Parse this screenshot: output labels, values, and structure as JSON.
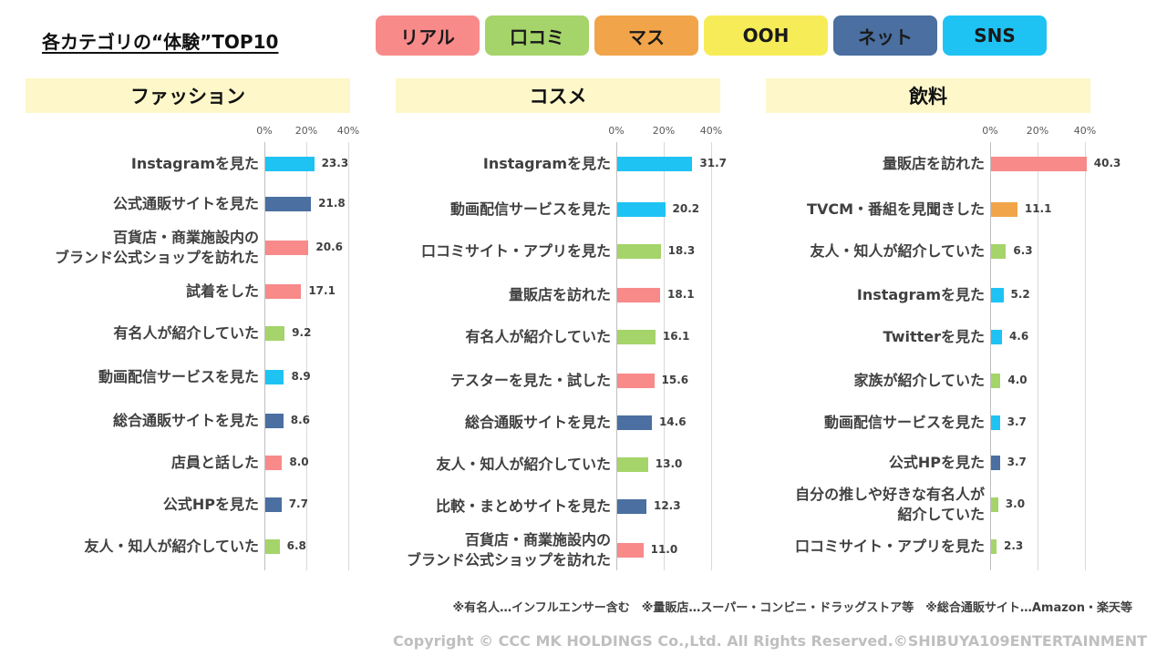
{
  "title": "各カテゴリの“体験”TOP10",
  "legend": [
    {
      "label": "リアル",
      "color": "#f88a8a"
    },
    {
      "label": "口コミ",
      "color": "#a5d46a"
    },
    {
      "label": "マス",
      "color": "#f2a44a"
    },
    {
      "label": "OOH",
      "color": "#f6ec58"
    },
    {
      "label": "ネット",
      "color": "#4a6fa0"
    },
    {
      "label": "SNS",
      "color": "#1ec3f4"
    }
  ],
  "chart_data": [
    {
      "type": "bar",
      "title": "ファッション",
      "xlim": [
        0,
        40
      ],
      "ticks": [
        "0%",
        "20%",
        "40%"
      ],
      "categories": [
        "Instagramを見た",
        "公式通販サイトを見た",
        "百貨店・商業施設内の\nブランド公式ショップを訪れた",
        "試着をした",
        "有名人が紹介していた",
        "動画配信サービスを見た",
        "総合通販サイトを見た",
        "店員と話した",
        "公式HPを見た",
        "友人・知人が紹介していた"
      ],
      "values": [
        23.3,
        21.8,
        20.6,
        17.1,
        9.2,
        8.9,
        8.6,
        8.0,
        7.7,
        6.8
      ],
      "value_labels": [
        "23.3",
        "21.8",
        "20.6",
        "17.1",
        "9.2",
        "8.9",
        "8.6",
        "8.0",
        "7.7",
        "6.8"
      ],
      "channel": [
        "SNS",
        "ネット",
        "リアル",
        "リアル",
        "口コミ",
        "SNS",
        "ネット",
        "リアル",
        "ネット",
        "口コミ"
      ]
    },
    {
      "type": "bar",
      "title": "コスメ",
      "xlim": [
        0,
        40
      ],
      "ticks": [
        "0%",
        "20%",
        "40%"
      ],
      "categories": [
        "Instagramを見た",
        "動画配信サービスを見た",
        "口コミサイト・アプリを見た",
        "量販店を訪れた",
        "有名人が紹介していた",
        "テスターを見た・試した",
        "総合通販サイトを見た",
        "友人・知人が紹介していた",
        "比較・まとめサイトを見た",
        "百貨店・商業施設内の\nブランド公式ショップを訪れた"
      ],
      "values": [
        31.7,
        20.2,
        18.3,
        18.1,
        16.1,
        15.6,
        14.6,
        13.0,
        12.3,
        11.0
      ],
      "value_labels": [
        "31.7",
        "20.2",
        "18.3",
        "18.1",
        "16.1",
        "15.6",
        "14.6",
        "13.0",
        "12.3",
        "11.0"
      ],
      "channel": [
        "SNS",
        "SNS",
        "口コミ",
        "リアル",
        "口コミ",
        "リアル",
        "ネット",
        "口コミ",
        "ネット",
        "リアル"
      ]
    },
    {
      "type": "bar",
      "title": "飲料",
      "xlim": [
        0,
        40
      ],
      "ticks": [
        "0%",
        "20%",
        "40%"
      ],
      "categories": [
        "量販店を訪れた",
        "TVCM・番組を見聞きした",
        "友人・知人が紹介していた",
        "Instagramを見た",
        "Twitterを見た",
        "家族が紹介していた",
        "動画配信サービスを見た",
        "公式HPを見た",
        "自分の推しや好きな有名人が\n紹介していた",
        "口コミサイト・アプリを見た"
      ],
      "values": [
        40.3,
        11.1,
        6.3,
        5.2,
        4.6,
        4.0,
        3.7,
        3.7,
        3.0,
        2.3
      ],
      "value_labels": [
        "40.3",
        "11.1",
        "6.3",
        "5.2",
        "4.6",
        "4.0",
        "3.7",
        "3.7",
        "3.0",
        "2.3"
      ],
      "channel": [
        "リアル",
        "マス",
        "口コミ",
        "SNS",
        "SNS",
        "口コミ",
        "SNS",
        "ネット",
        "口コミ",
        "口コミ"
      ]
    }
  ],
  "notes": "※有名人…インフルエンサー含む　※量販店…スーパー・コンビニ・ドラッグストア等　※総合通販サイト…Amazon・楽天等",
  "copyright": "Copyright © CCC MK HOLDINGS Co.,Ltd. All Rights Reserved.©SHIBUYA109ENTERTAINMENT"
}
